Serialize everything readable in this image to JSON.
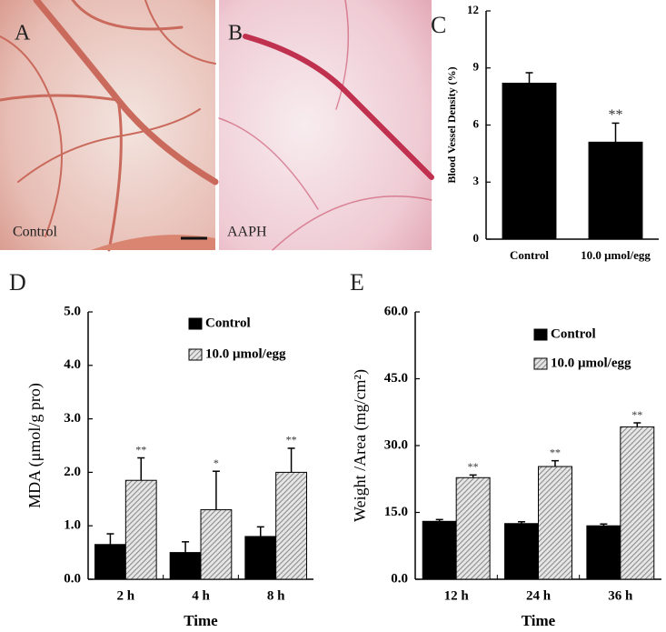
{
  "images": [
    {
      "panel": "A",
      "label": "Control"
    },
    {
      "panel": "B",
      "label": "AAPH"
    }
  ],
  "chart_data": [
    {
      "type": "bar",
      "panel": "C",
      "ylabel": "Blood Vessel Density (%)",
      "categories": [
        "Control",
        "10.0 μmol/egg"
      ],
      "series": [
        {
          "color": "#000000",
          "values": [
            8.2,
            5.1
          ],
          "errors": [
            0.55,
            1.0
          ],
          "significance": [
            null,
            "**"
          ]
        }
      ],
      "ylim": [
        0,
        12
      ],
      "yticks": [
        0,
        3,
        6,
        9,
        12
      ]
    },
    {
      "type": "bar",
      "panel": "D",
      "ylabel": "MDA (μmol/g pro)",
      "xlabel": "Time",
      "categories": [
        "2 h",
        "4 h",
        "8 h"
      ],
      "series": [
        {
          "name": "Control",
          "color": "#000000",
          "values": [
            0.65,
            0.5,
            0.8
          ],
          "errors": [
            0.2,
            0.2,
            0.18
          ],
          "significance": [
            null,
            null,
            null
          ]
        },
        {
          "name": "10.0 μmol/egg",
          "color": "#8c8c8c",
          "hatch": true,
          "values": [
            1.85,
            1.3,
            2.0
          ],
          "errors": [
            0.42,
            0.72,
            0.45
          ],
          "significance": [
            "**",
            "*",
            "**"
          ]
        }
      ],
      "ylim": [
        0,
        5
      ],
      "yticks": [
        {
          "value": 0,
          "label": "0.0"
        },
        {
          "value": 1,
          "label": "1.0"
        },
        {
          "value": 2,
          "label": "2.0"
        },
        {
          "value": 3,
          "label": "3.0"
        },
        {
          "value": 4,
          "label": "4.0"
        },
        {
          "value": 5,
          "label": "5.0"
        }
      ]
    },
    {
      "type": "bar",
      "panel": "E",
      "ylabel": "Weight /Area (mg/cm²)",
      "xlabel": "Time",
      "categories": [
        "12 h",
        "24 h",
        "36 h"
      ],
      "series": [
        {
          "name": "Control",
          "color": "#000000",
          "values": [
            13,
            12.5,
            12
          ],
          "errors": [
            0.4,
            0.4,
            0.4
          ],
          "significance": [
            null,
            null,
            null
          ]
        },
        {
          "name": "10.0 μmol/egg",
          "color": "#8c8c8c",
          "hatch": true,
          "values": [
            22.8,
            25.3,
            34.2
          ],
          "errors": [
            0.6,
            1.3,
            0.9
          ],
          "significance": [
            "**",
            "**",
            "**"
          ]
        }
      ],
      "ylim": [
        0,
        60
      ],
      "yticks": [
        {
          "value": 0,
          "label": "0.0"
        },
        {
          "value": 15,
          "label": "15.0"
        },
        {
          "value": 30,
          "label": "30.0"
        },
        {
          "value": 45,
          "label": "45.0"
        },
        {
          "value": 60,
          "label": "60.0"
        }
      ]
    }
  ]
}
